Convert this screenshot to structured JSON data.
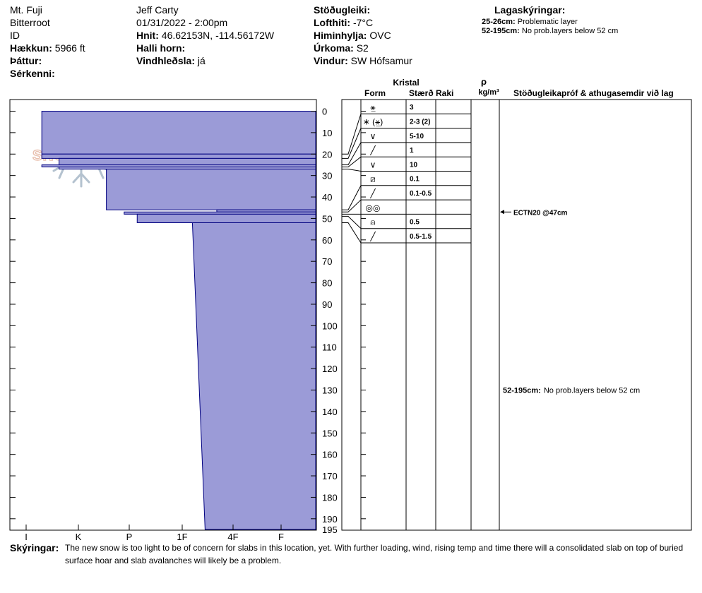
{
  "header": {
    "col1": {
      "location": "Mt. Fuji",
      "range": "Bitterroot",
      "state": "ID",
      "elevation_label": "Hækkun:",
      "elevation_value": "5966 ft",
      "aspect_label": "Þáttur:",
      "specifics_label": "Sérkenni:"
    },
    "col2": {
      "observer": "Jeff Carty",
      "datetime": "01/31/2022 - 2:00pm",
      "coords_label": "Hnit:",
      "coords_value": "46.62153N, -114.56172W",
      "slope_label": "Halli horn:",
      "wind_loading_label": "Vindhleðsla:",
      "wind_loading_value": "já"
    },
    "col3": {
      "stability_label": "Stöðugleiki:",
      "air_temp_label": "Lofthiti:",
      "air_temp_value": "-7°C",
      "sky_label": "Himinhylja:",
      "sky_value": "OVC",
      "precip_label": "Úrkoma:",
      "precip_value": "S2",
      "wind_label": "Vindur:",
      "wind_value": "SW Hófsamur"
    },
    "legend": {
      "title": "Lagaskýringar:",
      "items": [
        {
          "range": "25-26cm:",
          "text": "Problematic layer"
        },
        {
          "range": "52-195cm:",
          "text": "No prob.layers below 52 cm"
        }
      ]
    }
  },
  "columns": {
    "crystal": "Kristal",
    "form": "Form",
    "size": "Stærð",
    "moisture": "Raki",
    "density_symbol": "ρ",
    "density_unit": "kg/m³",
    "tests": "Stöðugleikapróf & athugasemdir við lag"
  },
  "colors": {
    "layer_fill": "#9b9bd7",
    "layer_stroke": "#000080",
    "logo": "#e9c1b0",
    "logo_flake": "#b4c2cf"
  },
  "logo_text": "SNOW PILOT",
  "chart_data": {
    "type": "snow-profile",
    "depth_range_cm": [
      0,
      195
    ],
    "depth_ticks": [
      0,
      10,
      20,
      30,
      40,
      50,
      60,
      70,
      80,
      90,
      100,
      110,
      120,
      130,
      140,
      150,
      160,
      170,
      180,
      190,
      195
    ],
    "hardness_scale": [
      "I",
      "K",
      "P",
      "1F",
      "4F",
      "F"
    ],
    "layers": [
      {
        "top": 0,
        "bottom": 20,
        "hardness": 0.3
      },
      {
        "top": 20,
        "bottom": 22,
        "hardness": 0.3
      },
      {
        "top": 22,
        "bottom": 25,
        "hardness": 0.63
      },
      {
        "top": 25,
        "bottom": 26,
        "hardness": 0.3
      },
      {
        "top": 26,
        "bottom": 27,
        "hardness": 0.63
      },
      {
        "top": 27,
        "bottom": 46,
        "hardness": 1.55
      },
      {
        "top": 46,
        "bottom": 47,
        "hardness": 3.68
      },
      {
        "top": 47,
        "bottom": 48,
        "hardness": 1.9
      },
      {
        "top": 48,
        "bottom": 52,
        "hardness": 2.15
      },
      {
        "top": 52,
        "bottom": 195,
        "hardness": 3.2,
        "hardness_bottom": 3.45
      }
    ],
    "crystal_rows": [
      {
        "form": "⚹̲",
        "size": "3",
        "depth": 20
      },
      {
        "form": "∗ (⚹̲)",
        "size": "2-3 (2)",
        "depth": 22
      },
      {
        "form": "∨",
        "size": "5-10",
        "depth": 25
      },
      {
        "form": "╱",
        "size": "1",
        "depth": 26
      },
      {
        "form": "∨",
        "size": "10",
        "depth": 27
      },
      {
        "form": "⧄",
        "size": "0.1",
        "depth": 46
      },
      {
        "form": "╱",
        "size": "0.1-0.5",
        "depth": 47
      },
      {
        "form": "◎◎",
        "size": "",
        "depth": 48
      },
      {
        "form": "⍝",
        "size": "0.5",
        "depth": 49
      },
      {
        "form": "╱",
        "size": "0.5-1.5",
        "depth": 52
      }
    ],
    "tests": [
      {
        "text": "ECTN20 @47cm",
        "depth": 47,
        "arrow": true
      }
    ],
    "layer_comments": [
      {
        "range": "52-195cm:",
        "text": "No prob.layers below 52 cm",
        "depth": 130
      }
    ]
  },
  "notes": {
    "label": "Skýringar:",
    "line1": "The new snow is too light to be of concern for slabs in this location, yet. With further loading, wind, rising temp and time there will a consolidated slab on top of buried",
    "line2": "surface hoar and slab avalanches will likely be a problem."
  }
}
